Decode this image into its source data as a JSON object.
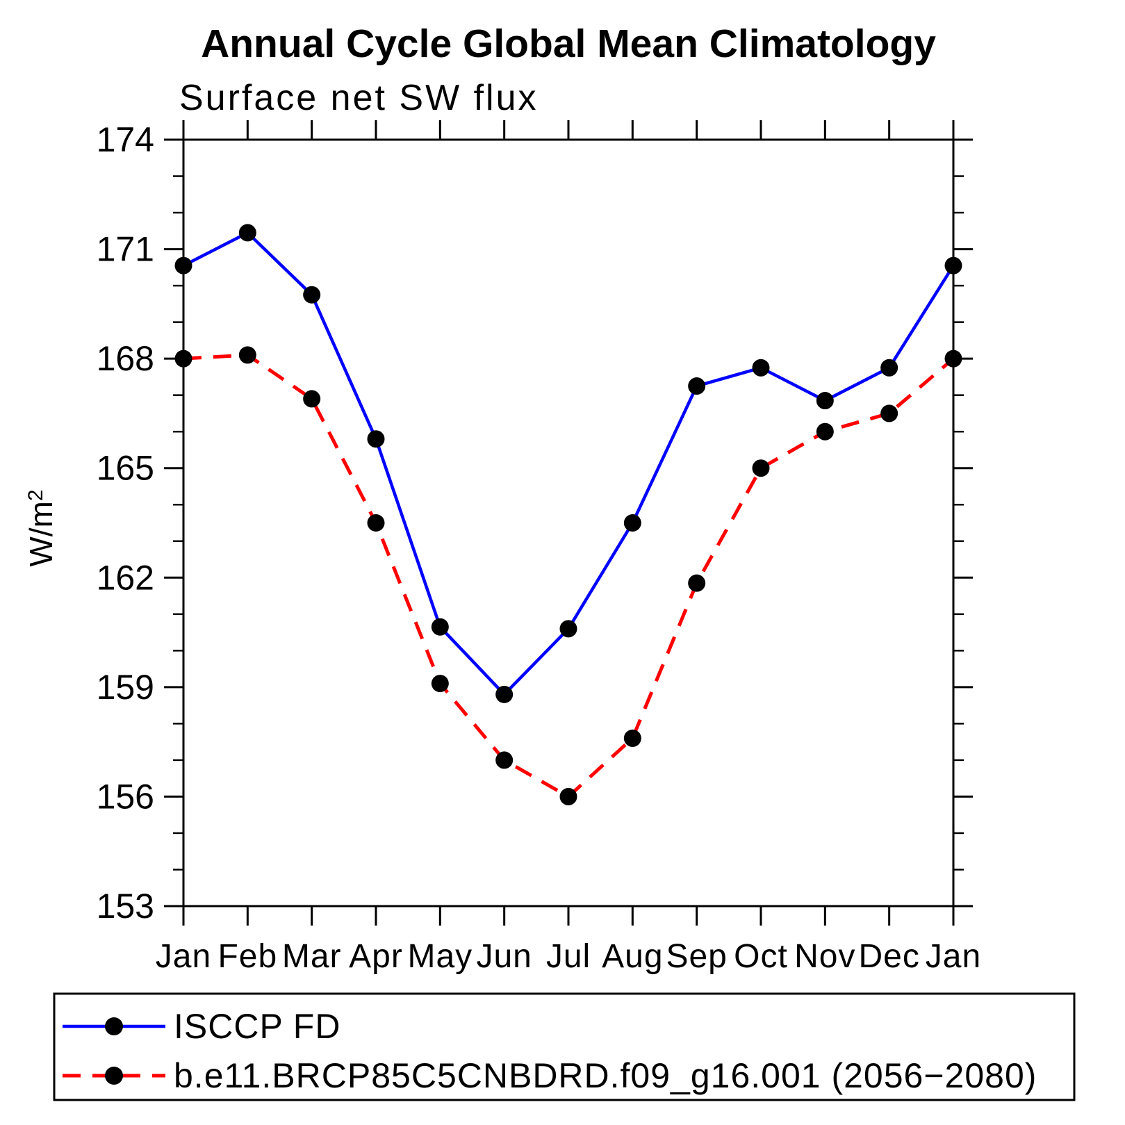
{
  "chart_data": {
    "type": "line",
    "title": "Annual Cycle Global Mean Climatology",
    "subtitle": "Surface net SW flux",
    "ylabel": "W/m",
    "ylabel_sup": "2",
    "categories": [
      "Jan",
      "Feb",
      "Mar",
      "Apr",
      "May",
      "Jun",
      "Jul",
      "Aug",
      "Sep",
      "Oct",
      "Nov",
      "Dec",
      "Jan"
    ],
    "ylim": [
      153,
      174
    ],
    "ytick_step": 3,
    "yminor_step": 1,
    "ytick_labels": [
      "153",
      "156",
      "159",
      "162",
      "165",
      "168",
      "171",
      "174"
    ],
    "grid": false,
    "legend_position": "bottom",
    "axis_color": "#000000",
    "marker_color": "#000000",
    "series": [
      {
        "name": "ISCCP FD",
        "color": "#0000ff",
        "style": "solid",
        "values": [
          170.55,
          171.45,
          169.75,
          165.8,
          160.65,
          158.8,
          160.6,
          163.5,
          167.25,
          167.75,
          166.85,
          167.75,
          170.55
        ]
      },
      {
        "name": "b.e11.BRCP85C5CNBDRD.f09_g16.001 (2056−2080)",
        "color": "#ff0000",
        "style": "dashed",
        "values": [
          168.0,
          168.1,
          166.9,
          163.5,
          159.1,
          157.0,
          156.0,
          157.6,
          161.85,
          165.0,
          166.0,
          166.5,
          168.0
        ]
      }
    ]
  }
}
